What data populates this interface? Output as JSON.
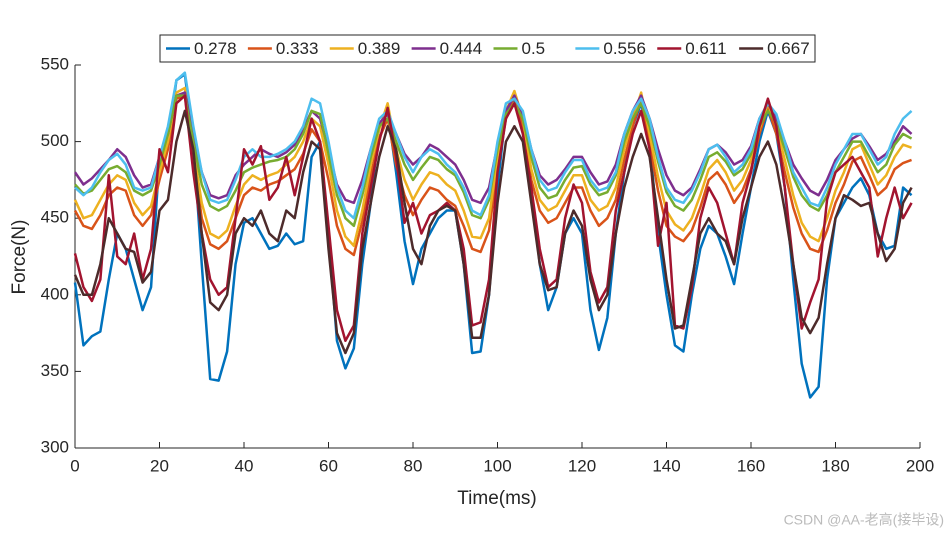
{
  "chart_data": {
    "type": "line",
    "xlabel": "Time(ms)",
    "ylabel": "Force(N)",
    "xlim": [
      0,
      200
    ],
    "xticks": [
      0,
      20,
      40,
      60,
      80,
      100,
      120,
      140,
      160,
      180,
      200
    ],
    "ylim": [
      300,
      550
    ],
    "yticks": [
      300,
      350,
      400,
      450,
      500,
      550
    ],
    "legend": "top",
    "watermark": "CSDN @AA-老高(接毕设)",
    "x": [
      0,
      2,
      4,
      6,
      8,
      10,
      12,
      14,
      16,
      18,
      20,
      22,
      24,
      26,
      28,
      30,
      32,
      34,
      36,
      38,
      40,
      42,
      44,
      46,
      48,
      50,
      52,
      54,
      56,
      58,
      60,
      62,
      64,
      66,
      68,
      70,
      72,
      74,
      76,
      78,
      80,
      82,
      84,
      86,
      88,
      90,
      92,
      94,
      96,
      98,
      100,
      102,
      104,
      106,
      108,
      110,
      112,
      114,
      116,
      118,
      120,
      122,
      124,
      126,
      128,
      130,
      132,
      134,
      136,
      138,
      140,
      142,
      144,
      146,
      148,
      150,
      152,
      154,
      156,
      158,
      160,
      162,
      164,
      166,
      168,
      170,
      172,
      174,
      176,
      178,
      180,
      182,
      184,
      186,
      188,
      190,
      192,
      194,
      196,
      198
    ],
    "series": [
      {
        "name": "0.278",
        "color": "#0072BD",
        "values": [
          408,
          367,
          373,
          376,
          410,
          440,
          430,
          410,
          390,
          405,
          490,
          500,
          540,
          544,
          500,
          420,
          345,
          344,
          363,
          420,
          447,
          450,
          440,
          430,
          432,
          440,
          433,
          435,
          490,
          500,
          440,
          370,
          352,
          365,
          420,
          460,
          510,
          520,
          480,
          435,
          407,
          430,
          440,
          450,
          455,
          455,
          420,
          362,
          363,
          400,
          470,
          520,
          528,
          510,
          470,
          420,
          390,
          405,
          440,
          450,
          440,
          390,
          364,
          385,
          440,
          480,
          510,
          525,
          500,
          440,
          400,
          367,
          363,
          400,
          430,
          445,
          440,
          425,
          407,
          440,
          470,
          500,
          520,
          505,
          470,
          410,
          355,
          333,
          340,
          410,
          450,
          460,
          470,
          476,
          465,
          440,
          430,
          432,
          470,
          465
        ]
      },
      {
        "name": "0.333",
        "color": "#D95319",
        "values": [
          455,
          445,
          443,
          452,
          465,
          470,
          468,
          452,
          445,
          452,
          475,
          495,
          528,
          530,
          490,
          450,
          433,
          430,
          435,
          450,
          465,
          470,
          468,
          472,
          474,
          478,
          482,
          492,
          508,
          500,
          475,
          445,
          430,
          426,
          448,
          478,
          502,
          515,
          485,
          465,
          452,
          462,
          470,
          468,
          462,
          458,
          445,
          430,
          428,
          442,
          482,
          515,
          530,
          508,
          475,
          455,
          447,
          450,
          460,
          470,
          470,
          455,
          445,
          450,
          462,
          488,
          510,
          528,
          498,
          468,
          445,
          438,
          435,
          442,
          457,
          475,
          480,
          472,
          460,
          468,
          482,
          505,
          522,
          505,
          480,
          457,
          440,
          430,
          428,
          442,
          460,
          472,
          487,
          490,
          478,
          465,
          470,
          482,
          486,
          488
        ]
      },
      {
        "name": "0.389",
        "color": "#EDB120",
        "values": [
          462,
          450,
          452,
          462,
          472,
          478,
          475,
          460,
          452,
          458,
          480,
          500,
          532,
          535,
          495,
          460,
          440,
          437,
          442,
          458,
          472,
          478,
          475,
          478,
          480,
          485,
          490,
          500,
          515,
          510,
          485,
          455,
          438,
          432,
          455,
          485,
          508,
          525,
          495,
          475,
          462,
          472,
          480,
          478,
          472,
          468,
          455,
          438,
          437,
          450,
          490,
          520,
          533,
          515,
          482,
          462,
          455,
          458,
          468,
          478,
          478,
          462,
          455,
          458,
          470,
          495,
          515,
          532,
          505,
          477,
          455,
          446,
          442,
          450,
          465,
          482,
          488,
          480,
          468,
          475,
          488,
          508,
          525,
          510,
          488,
          465,
          447,
          438,
          435,
          450,
          468,
          480,
          495,
          498,
          485,
          472,
          478,
          490,
          498,
          496
        ]
      },
      {
        "name": "0.444",
        "color": "#7E2F8E",
        "values": [
          480,
          472,
          476,
          482,
          488,
          495,
          490,
          478,
          470,
          472,
          490,
          505,
          530,
          532,
          505,
          480,
          465,
          463,
          465,
          478,
          485,
          490,
          495,
          492,
          490,
          493,
          498,
          508,
          520,
          515,
          495,
          472,
          462,
          460,
          475,
          495,
          512,
          518,
          505,
          492,
          485,
          490,
          498,
          495,
          490,
          485,
          475,
          462,
          460,
          470,
          498,
          520,
          530,
          518,
          495,
          478,
          472,
          475,
          482,
          490,
          490,
          480,
          472,
          474,
          485,
          505,
          520,
          530,
          515,
          495,
          478,
          468,
          465,
          470,
          482,
          495,
          498,
          493,
          485,
          488,
          497,
          515,
          525,
          515,
          500,
          485,
          476,
          468,
          465,
          475,
          488,
          495,
          502,
          505,
          497,
          488,
          492,
          500,
          510,
          505
        ]
      },
      {
        "name": "0.5",
        "color": "#77AC30",
        "values": [
          472,
          466,
          468,
          475,
          482,
          484,
          480,
          468,
          465,
          468,
          485,
          505,
          530,
          530,
          500,
          472,
          458,
          455,
          458,
          468,
          480,
          483,
          485,
          487,
          488,
          490,
          495,
          505,
          520,
          518,
          492,
          465,
          450,
          445,
          465,
          490,
          510,
          515,
          500,
          485,
          475,
          483,
          490,
          488,
          482,
          478,
          467,
          452,
          450,
          462,
          495,
          518,
          525,
          515,
          490,
          470,
          463,
          465,
          475,
          483,
          484,
          472,
          465,
          467,
          478,
          500,
          515,
          525,
          510,
          487,
          467,
          458,
          455,
          462,
          475,
          490,
          493,
          487,
          478,
          482,
          492,
          510,
          520,
          512,
          495,
          477,
          465,
          458,
          455,
          465,
          480,
          490,
          500,
          500,
          490,
          480,
          485,
          498,
          505,
          502
        ]
      },
      {
        "name": "0.556",
        "color": "#4DBEEE",
        "values": [
          470,
          465,
          470,
          480,
          488,
          492,
          485,
          470,
          468,
          470,
          490,
          510,
          540,
          545,
          510,
          480,
          462,
          460,
          462,
          475,
          490,
          495,
          490,
          490,
          492,
          495,
          500,
          510,
          528,
          525,
          500,
          470,
          455,
          450,
          470,
          495,
          515,
          520,
          505,
          490,
          480,
          490,
          495,
          492,
          485,
          480,
          470,
          455,
          452,
          465,
          500,
          525,
          528,
          520,
          495,
          475,
          468,
          470,
          480,
          488,
          488,
          475,
          468,
          470,
          480,
          505,
          520,
          528,
          515,
          490,
          470,
          462,
          460,
          468,
          480,
          495,
          498,
          490,
          480,
          485,
          495,
          515,
          525,
          518,
          500,
          480,
          470,
          460,
          458,
          470,
          485,
          495,
          505,
          505,
          495,
          485,
          490,
          505,
          515,
          520
        ]
      },
      {
        "name": "0.611",
        "color": "#A2142F",
        "values": [
          427,
          405,
          396,
          410,
          478,
          425,
          420,
          440,
          410,
          430,
          495,
          480,
          525,
          530,
          480,
          440,
          410,
          400,
          405,
          450,
          495,
          485,
          497,
          462,
          470,
          490,
          465,
          490,
          515,
          500,
          445,
          390,
          370,
          380,
          440,
          470,
          500,
          522,
          490,
          447,
          460,
          440,
          452,
          455,
          460,
          455,
          430,
          380,
          382,
          410,
          480,
          515,
          525,
          505,
          470,
          430,
          405,
          410,
          450,
          472,
          460,
          415,
          395,
          405,
          455,
          480,
          505,
          520,
          495,
          432,
          460,
          380,
          378,
          405,
          450,
          470,
          460,
          440,
          420,
          460,
          480,
          510,
          528,
          510,
          470,
          420,
          378,
          395,
          410,
          462,
          480,
          485,
          490,
          480,
          470,
          425,
          450,
          470,
          450,
          460
        ]
      },
      {
        "name": "0.667",
        "color": "#4D2B2B",
        "values": [
          413,
          400,
          400,
          420,
          450,
          440,
          430,
          428,
          408,
          415,
          455,
          462,
          500,
          520,
          495,
          440,
          395,
          390,
          400,
          440,
          450,
          445,
          455,
          440,
          435,
          455,
          450,
          480,
          500,
          495,
          430,
          375,
          362,
          375,
          430,
          460,
          490,
          510,
          495,
          460,
          430,
          420,
          445,
          455,
          458,
          455,
          420,
          372,
          372,
          400,
          460,
          500,
          510,
          500,
          460,
          420,
          403,
          405,
          440,
          455,
          445,
          410,
          390,
          400,
          440,
          470,
          490,
          505,
          490,
          450,
          410,
          378,
          380,
          410,
          440,
          450,
          440,
          435,
          420,
          450,
          470,
          490,
          500,
          485,
          455,
          420,
          385,
          375,
          385,
          420,
          450,
          465,
          462,
          458,
          460,
          440,
          422,
          430,
          460,
          470
        ]
      }
    ]
  }
}
